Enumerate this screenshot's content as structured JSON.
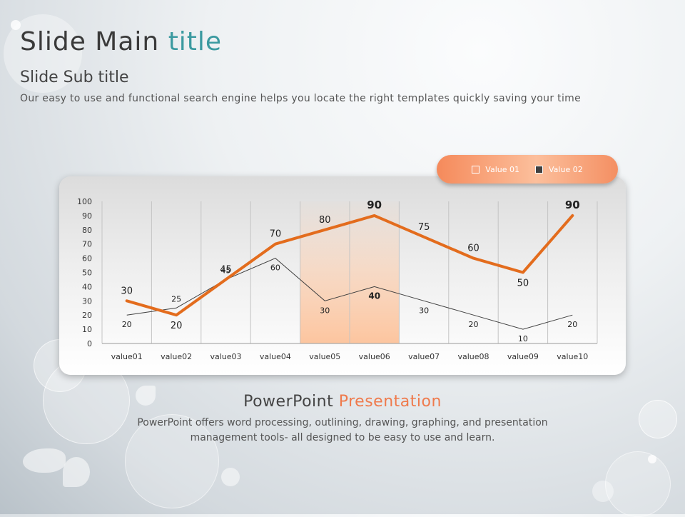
{
  "slide": {
    "title_main": "Slide Main ",
    "title_accent": "title",
    "subtitle": "Slide Sub title",
    "description": "Our easy to use and functional search engine helps you locate the right templates quickly saving your time"
  },
  "footer": {
    "title_main": "PowerPoint ",
    "title_accent": "Presentation",
    "body": "PowerPoint offers word processing, outlining, drawing, graphing, and presentation management tools- all designed to be easy to use and learn."
  },
  "colors": {
    "accent_teal": "#3b9aa0",
    "accent_orange": "#ef7a4c",
    "series1": "#e36c1d",
    "series2": "#404040",
    "highlight": "#fcc59f"
  },
  "chart_data": {
    "type": "line",
    "categories": [
      "value01",
      "value02",
      "value03",
      "value04",
      "value05",
      "value06",
      "value07",
      "value08",
      "value09",
      "value10"
    ],
    "series": [
      {
        "name": "Value 01",
        "values": [
          30,
          20,
          45,
          70,
          80,
          90,
          75,
          60,
          50,
          90
        ]
      },
      {
        "name": "Value 02",
        "values": [
          20,
          25,
          45,
          60,
          30,
          40,
          30,
          20,
          10,
          20
        ]
      }
    ],
    "ylim": [
      0,
      100
    ],
    "yticks": [
      0,
      10,
      20,
      30,
      40,
      50,
      60,
      70,
      80,
      90,
      100
    ],
    "grid": "vertical",
    "highlight_categories": [
      "value05",
      "value06"
    ],
    "legend": "top-right",
    "title": "",
    "xlabel": "",
    "ylabel": ""
  }
}
